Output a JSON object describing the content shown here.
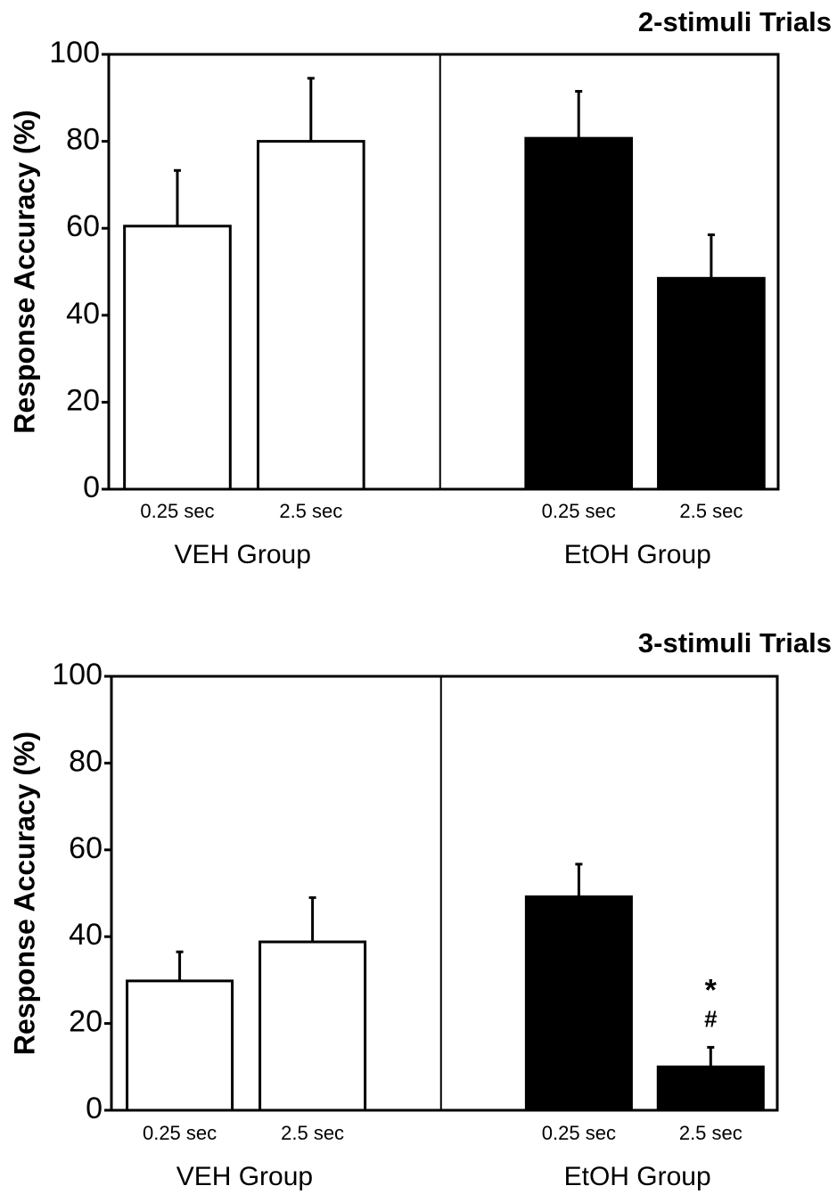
{
  "chart_data": [
    {
      "type": "bar",
      "title": "2-stimuli Trials",
      "y_label": "Response Accuracy (%)",
      "categories": [
        "0.25 sec",
        "2.5 sec",
        "0.25 sec",
        "2.5 sec"
      ],
      "groups": [
        "VEH Group",
        "EtOH Group"
      ],
      "values": [
        60.5,
        80,
        80.7,
        48.5
      ],
      "errors": [
        12.8,
        14.5,
        10.8,
        10
      ],
      "colors": [
        "#ffffff",
        "#ffffff",
        "#000000",
        "#000000"
      ],
      "ylim": [
        0,
        100
      ],
      "yticks": [
        0,
        20,
        40,
        60,
        80,
        100
      ]
    },
    {
      "type": "bar",
      "title": "3-stimuli Trials",
      "y_label": "Response Accuracy (%)",
      "categories": [
        "0.25 sec",
        "2.5 sec",
        "0.25 sec",
        "2.5 sec"
      ],
      "groups": [
        "VEH Group",
        "EtOH Group"
      ],
      "values": [
        29.8,
        38.8,
        49.2,
        10
      ],
      "errors": [
        6.7,
        10.2,
        7.5,
        4.5
      ],
      "colors": [
        "#ffffff",
        "#ffffff",
        "#000000",
        "#000000"
      ],
      "annotations": [
        "*",
        "#"
      ],
      "ylim": [
        0,
        100
      ],
      "yticks": [
        0,
        20,
        40,
        60,
        80,
        100
      ]
    }
  ]
}
